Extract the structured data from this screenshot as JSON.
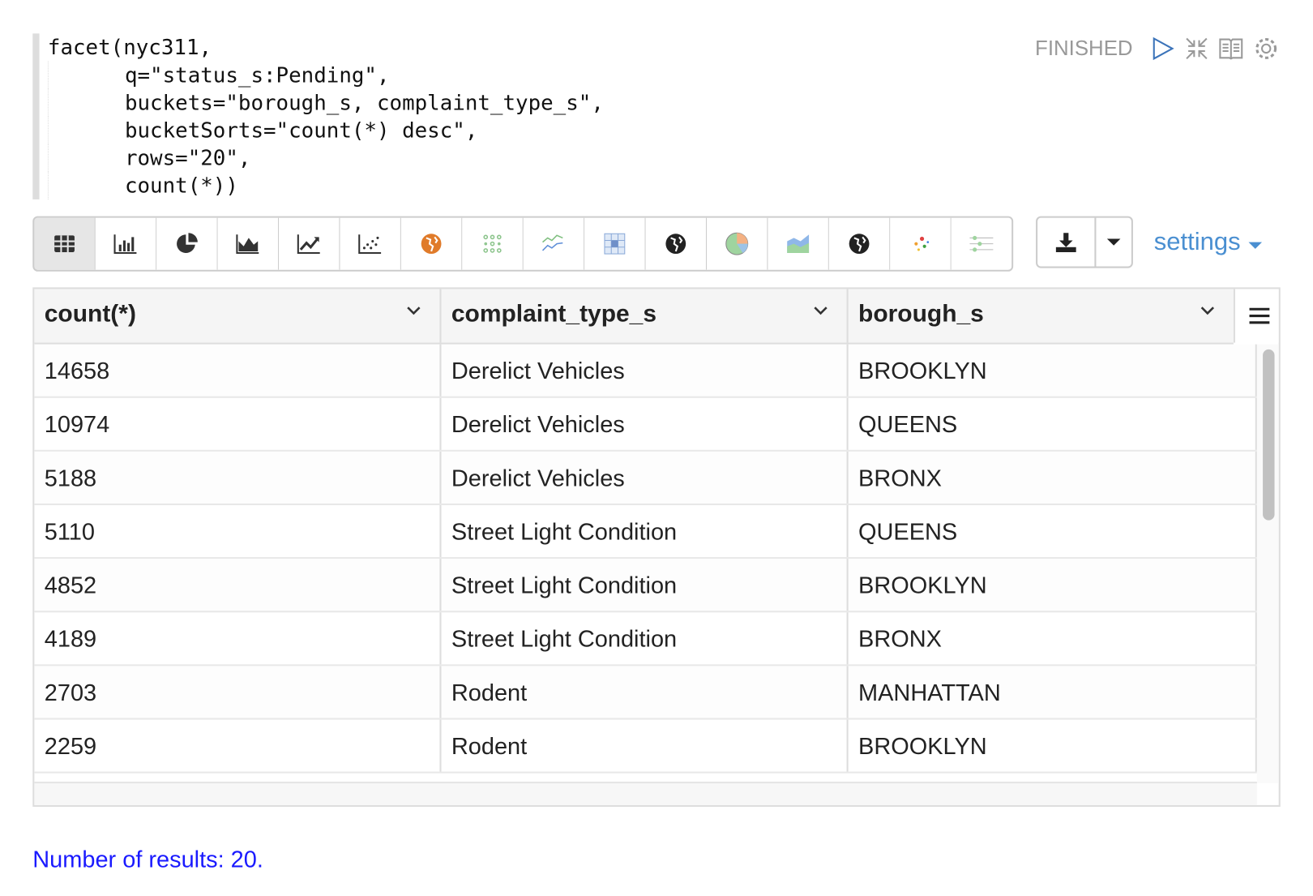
{
  "paragraph": {
    "code_lines": [
      "facet(nyc311,",
      "q=\"status_s:Pending\",",
      "buckets=\"borough_s, complaint_type_s\",",
      "bucketSorts=\"count(*) desc\",",
      "rows=\"20\",",
      "count(*))"
    ],
    "status": "FINISHED",
    "toolbar_icons": [
      "play-icon",
      "collapse-icon",
      "book-icon",
      "gear-icon"
    ]
  },
  "viz_buttons": [
    "table",
    "bar-chart",
    "pie-chart",
    "area-chart",
    "line-chart",
    "scatter-chart",
    "map",
    "heatmap",
    "multi-line",
    "matrix",
    "globe",
    "pie",
    "area-colored",
    "globe-2",
    "bubble",
    "range-slider"
  ],
  "active_viz": "table",
  "settings_label": "settings",
  "table": {
    "columns": [
      "count(*)",
      "complaint_type_s",
      "borough_s"
    ],
    "rows": [
      [
        "14658",
        "Derelict Vehicles",
        "BROOKLYN"
      ],
      [
        "10974",
        "Derelict Vehicles",
        "QUEENS"
      ],
      [
        "5188",
        "Derelict Vehicles",
        "BRONX"
      ],
      [
        "5110",
        "Street Light Condition",
        "QUEENS"
      ],
      [
        "4852",
        "Street Light Condition",
        "BROOKLYN"
      ],
      [
        "4189",
        "Street Light Condition",
        "BRONX"
      ],
      [
        "2703",
        "Rodent",
        "MANHATTAN"
      ],
      [
        "2259",
        "Rodent",
        "BROOKLYN"
      ]
    ]
  },
  "results_text": "Number of results: 20.",
  "colors": {
    "accent": "#4a8fd1",
    "link": "#1a1aff",
    "status": "#999999"
  }
}
